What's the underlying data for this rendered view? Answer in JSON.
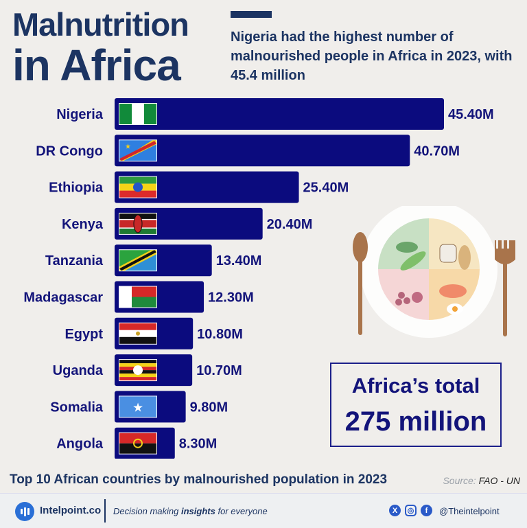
{
  "header": {
    "title_line1": "Malnutrition",
    "title_line2": "in Africa",
    "subtitle": "Nigeria had the highest number of malnourished people in Africa in 2023, with 45.4 million"
  },
  "chart_data": {
    "type": "bar",
    "orientation": "horizontal",
    "categories": [
      "Nigeria",
      "DR Congo",
      "Ethiopia",
      "Kenya",
      "Tanzania",
      "Madagascar",
      "Egypt",
      "Uganda",
      "Somalia",
      "Angola"
    ],
    "values": [
      45.4,
      40.7,
      25.4,
      20.4,
      13.4,
      12.3,
      10.8,
      10.7,
      9.8,
      8.3
    ],
    "value_labels": [
      "45.40M",
      "40.70M",
      "25.40M",
      "20.40M",
      "13.40M",
      "12.30M",
      "10.80M",
      "10.70M",
      "9.80M",
      "8.30M"
    ],
    "flag_icons": [
      "nigeria-flag-icon",
      "dr-congo-flag-icon",
      "ethiopia-flag-icon",
      "kenya-flag-icon",
      "tanzania-flag-icon",
      "madagascar-flag-icon",
      "egypt-flag-icon",
      "uganda-flag-icon",
      "somalia-flag-icon",
      "angola-flag-icon"
    ],
    "bar_color": "#0b0b7e",
    "title": "Top 10 African countries by malnourished population in 2023",
    "xlabel": "",
    "ylabel": ""
  },
  "total": {
    "line1": "Africa’s total",
    "line2": "275 million"
  },
  "source": {
    "label": "Source:",
    "value": "FAO - UN"
  },
  "footer": {
    "brand": "Intelpoint.co",
    "tagline_pre": "Decision making ",
    "tagline_bold": "insights",
    "tagline_post": " for everyone",
    "handle": "@Theintelpoint",
    "social_icons": [
      "x-icon",
      "instagram-icon",
      "facebook-icon"
    ]
  },
  "colors": {
    "navy": "#1c3462",
    "bar": "#0b0b7e",
    "background": "#f0eeeb"
  }
}
